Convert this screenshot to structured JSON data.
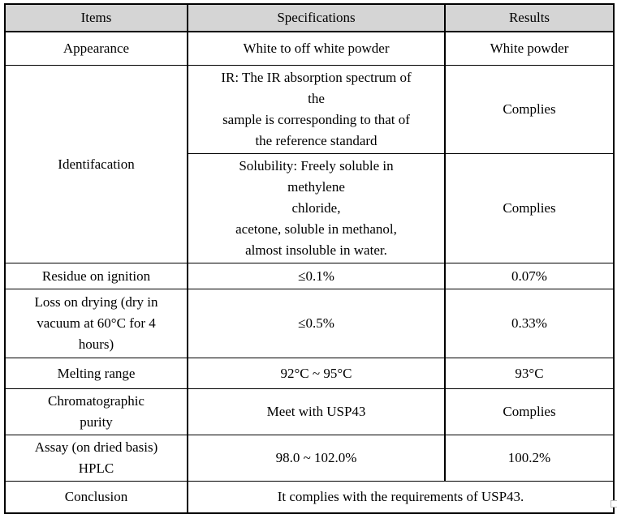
{
  "colors": {
    "border": "#000000",
    "header_bg": "#d5d5d5",
    "text": "#000000",
    "handle_border": "#b9b9b9"
  },
  "table": {
    "columns": [
      "Items",
      "Specifications",
      "Results"
    ],
    "rows": {
      "appearance": {
        "item": "Appearance",
        "spec": "White to off white powder",
        "result": "White powder"
      },
      "identification": {
        "item": "Identifacation"
      },
      "ir": {
        "spec": "IR: The IR absorption spectrum of\nthe\nsample is corresponding to that of\nthe reference standard",
        "result": "Complies"
      },
      "solubility": {
        "spec": "Solubility: Freely soluble in\nmethylene\nchloride,\nacetone, soluble in methanol,\nalmost insoluble in water.",
        "result": "Complies"
      },
      "residue": {
        "item": "Residue on ignition",
        "spec": "≤0.1%",
        "result": "0.07%"
      },
      "loss_on_drying": {
        "item": "Loss on drying (dry in\nvacuum at 60°C for 4\nhours)",
        "spec": "≤0.5%",
        "result": "0.33%"
      },
      "melting_range": {
        "item": "Melting range",
        "spec": "92°C ~ 95°C",
        "result": "93°C"
      },
      "chromatographic_purity": {
        "item": "Chromatographic\npurity",
        "spec": "Meet with USP43",
        "result": "Complies"
      },
      "assay": {
        "item": "Assay (on dried basis)\nHPLC",
        "spec": "98.0 ~ 102.0%",
        "result": "100.2%"
      },
      "conclusion": {
        "item": "Conclusion",
        "statement": "It complies with the requirements of USP43."
      }
    }
  }
}
